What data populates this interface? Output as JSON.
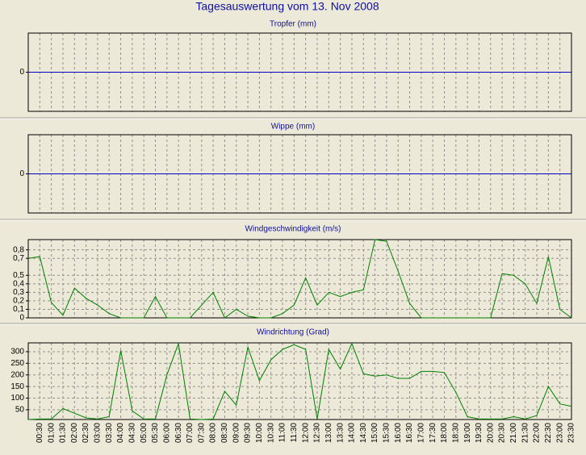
{
  "title": "Tagesauswertung vom 13. Nov 2008",
  "chart_data": [
    {
      "type": "line",
      "title": "Tropfer (mm)",
      "color": "#0000c0",
      "values": [
        0,
        0,
        0,
        0,
        0,
        0,
        0,
        0,
        0,
        0,
        0,
        0,
        0,
        0,
        0,
        0,
        0,
        0,
        0,
        0,
        0,
        0,
        0,
        0,
        0,
        0,
        0,
        0,
        0,
        0,
        0,
        0,
        0,
        0,
        0,
        0,
        0,
        0,
        0,
        0,
        0,
        0,
        0,
        0,
        0,
        0,
        0,
        0
      ],
      "ylim": [
        -1,
        1
      ],
      "yticks": [
        0
      ]
    },
    {
      "type": "line",
      "title": "Wippe (mm)",
      "color": "#0000c0",
      "values": [
        0,
        0,
        0,
        0,
        0,
        0,
        0,
        0,
        0,
        0,
        0,
        0,
        0,
        0,
        0,
        0,
        0,
        0,
        0,
        0,
        0,
        0,
        0,
        0,
        0,
        0,
        0,
        0,
        0,
        0,
        0,
        0,
        0,
        0,
        0,
        0,
        0,
        0,
        0,
        0,
        0,
        0,
        0,
        0,
        0,
        0,
        0,
        0
      ],
      "ylim": [
        -1,
        1
      ],
      "yticks": [
        0
      ]
    },
    {
      "type": "line",
      "title": "Windgeschwindigkeit (m/s)",
      "color": "#008000",
      "values": [
        0.7,
        0.72,
        0.18,
        0.03,
        0.35,
        0.23,
        0.15,
        0.05,
        0,
        0,
        0,
        0.25,
        0,
        0,
        0,
        0.15,
        0.3,
        0,
        0.1,
        0.02,
        0,
        0,
        0.05,
        0.15,
        0.47,
        0.15,
        0.3,
        0.25,
        0.3,
        0.33,
        0.92,
        0.9,
        0.55,
        0.17,
        0,
        0,
        0,
        0,
        0,
        0,
        0,
        0.52,
        0.5,
        0.4,
        0.17,
        0.72,
        0.1,
        0
      ],
      "ylim": [
        0,
        0.92
      ],
      "yticks": [
        0,
        {
          "value": 0.1,
          "label": "0,1"
        },
        {
          "value": 0.2,
          "label": "0,2"
        },
        {
          "value": 0.3,
          "label": "0,3"
        },
        {
          "value": 0.4,
          "label": "0,4"
        },
        {
          "value": 0.5,
          "label": "0,5"
        },
        {
          "value": 0.7,
          "label": "0,7"
        },
        {
          "value": 0.8,
          "label": "0,8"
        }
      ],
      "grid": true
    },
    {
      "type": "line",
      "title": "Windrichtung (Grad)",
      "color": "#008000",
      "categories": [
        null,
        "00:30",
        "01:00",
        "01:30",
        "02:00",
        "02:30",
        "03:00",
        "03:30",
        "04:00",
        "04:30",
        "05:00",
        "05:30",
        "06:00",
        "06:30",
        "07:00",
        "07:30",
        "08:00",
        "08:30",
        "09:00",
        "09:30",
        "10:00",
        "10:30",
        "11:00",
        "11:30",
        "12:00",
        "12:30",
        "13:00",
        "13:30",
        "14:00",
        "14:30",
        "15:00",
        "15:30",
        "16:00",
        "16:30",
        "17:00",
        "17:30",
        "18:00",
        "18:30",
        "19:00",
        "19:30",
        "20:00",
        "20:30",
        "21:00",
        "21:30",
        "22:00",
        "22:30",
        "23:00",
        "23:30"
      ],
      "values": [
        8,
        10,
        10,
        55,
        35,
        15,
        10,
        20,
        305,
        45,
        10,
        10,
        200,
        335,
        10,
        8,
        10,
        130,
        70,
        320,
        175,
        265,
        310,
        330,
        310,
        10,
        310,
        225,
        335,
        205,
        195,
        200,
        185,
        185,
        215,
        215,
        210,
        125,
        20,
        10,
        10,
        10,
        20,
        10,
        25,
        150,
        75,
        65
      ],
      "ylim": [
        8,
        338
      ],
      "yticks": [
        50,
        100,
        150,
        200,
        250,
        300
      ],
      "grid": true
    }
  ]
}
